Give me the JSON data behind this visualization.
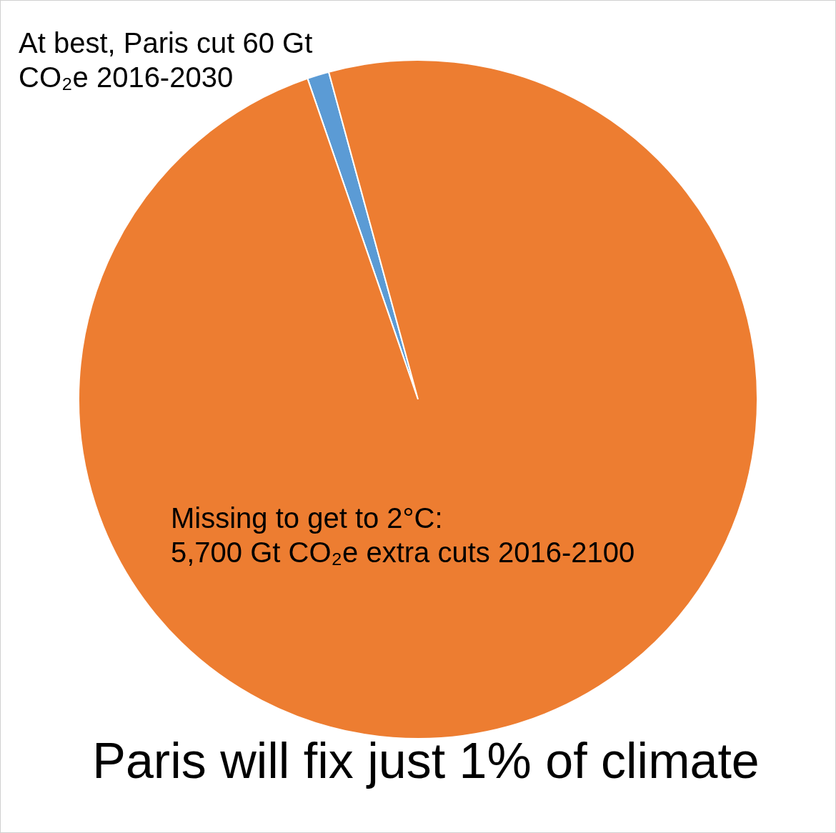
{
  "chart_data": {
    "type": "pie",
    "title": "Paris will fix just 1% of climate",
    "categories": [
      "At best, Paris cut 60 Gt\nCO₂e 2016-2030",
      "Missing to get to 2°C:\n5,700 Gt CO₂e extra cuts 2016-2100"
    ],
    "values": [
      60,
      5700
    ],
    "colors": [
      "#5b9bd5",
      "#ed7d31"
    ]
  }
}
